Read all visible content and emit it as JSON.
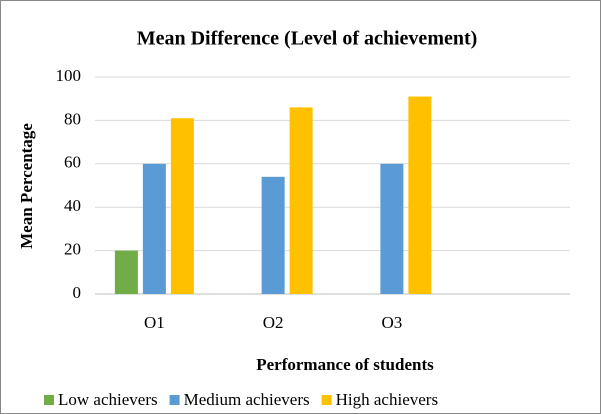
{
  "chart_data": {
    "type": "bar",
    "title": "Mean Difference (Level of achievement)",
    "x_label": "Performance of students",
    "y_label": "Mean Percentage",
    "categories": [
      "O1",
      "O2",
      "O3",
      null
    ],
    "series": [
      {
        "name": "Low achievers",
        "color": "#70ad47",
        "values": [
          20,
          null,
          null,
          null
        ]
      },
      {
        "name": "Medium achievers",
        "color": "#5b9bd5",
        "values": [
          60,
          54,
          60,
          null
        ]
      },
      {
        "name": "High achievers",
        "color": "#ffc000",
        "values": [
          81,
          86,
          91,
          null
        ]
      }
    ],
    "ylim": [
      0,
      100
    ],
    "yticks": [
      0,
      20,
      40,
      60,
      80,
      100
    ],
    "grid": true,
    "legend": "bottom"
  }
}
